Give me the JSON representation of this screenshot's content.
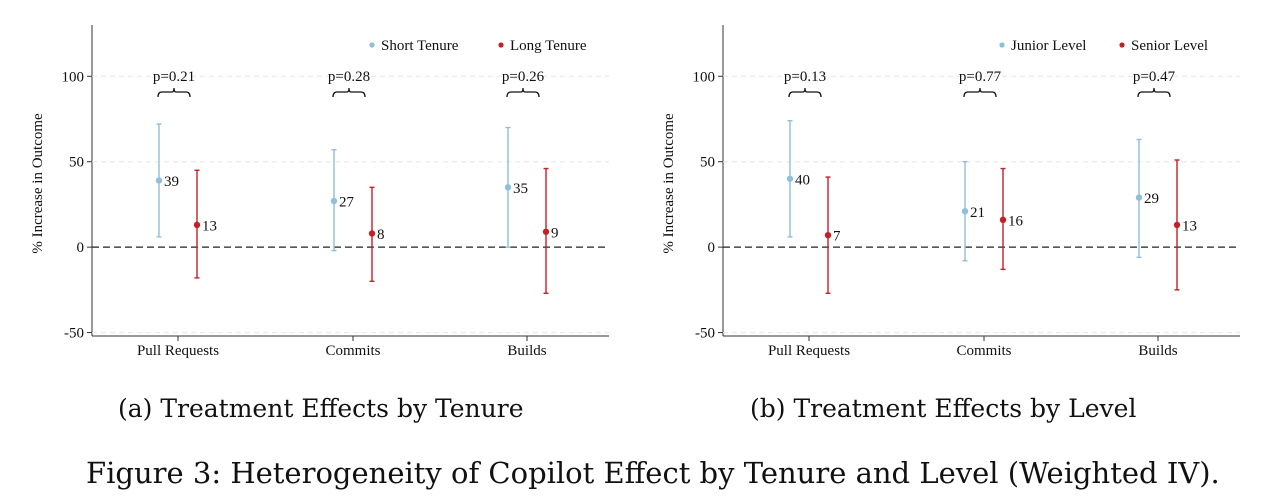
{
  "chart_data": [
    {
      "type": "scatter",
      "subtitle": "(a) Treatment Effects by Tenure",
      "ylabel": "% Increase in Outcome",
      "xlabel": "",
      "categories": [
        "Pull Requests",
        "Commits",
        "Builds"
      ],
      "ylim": [
        -52,
        130
      ],
      "yticks": [
        100,
        50,
        0,
        -50
      ],
      "grid": true,
      "reference_line": 0,
      "legend_position": "top-right",
      "series": [
        {
          "name": "Short Tenure",
          "color": "#8fbfdb",
          "values": [
            39,
            27,
            35
          ],
          "labels": [
            "39",
            "27",
            "35"
          ],
          "ci_lower": [
            6,
            -2,
            0
          ],
          "ci_upper": [
            72,
            57,
            70
          ]
        },
        {
          "name": "Long Tenure",
          "color": "#c42026",
          "values": [
            13,
            8,
            9
          ],
          "labels": [
            "13",
            "8",
            "9"
          ],
          "ci_lower": [
            -18,
            -20,
            -27
          ],
          "ci_upper": [
            45,
            35,
            46
          ]
        }
      ],
      "pvalues": [
        "p=0.21",
        "p=0.28",
        "p=0.26"
      ]
    },
    {
      "type": "scatter",
      "subtitle": "(b) Treatment Effects by Level",
      "ylabel": "% Increase in Outcome",
      "xlabel": "",
      "categories": [
        "Pull Requests",
        "Commits",
        "Builds"
      ],
      "ylim": [
        -52,
        130
      ],
      "yticks": [
        100,
        50,
        0,
        -50
      ],
      "grid": true,
      "reference_line": 0,
      "legend_position": "top-right",
      "series": [
        {
          "name": "Junior Level",
          "color": "#8fbfdb",
          "values": [
            40,
            21,
            29
          ],
          "labels": [
            "40",
            "21",
            "29"
          ],
          "ci_lower": [
            6,
            -8,
            -6
          ],
          "ci_upper": [
            74,
            50,
            63
          ]
        },
        {
          "name": "Senior Level",
          "color": "#c42026",
          "values": [
            7,
            16,
            13
          ],
          "labels": [
            "7",
            "16",
            "13"
          ],
          "ci_lower": [
            -27,
            -13,
            -25
          ],
          "ci_upper": [
            41,
            46,
            51
          ]
        }
      ],
      "pvalues": [
        "p=0.13",
        "p=0.77",
        "p=0.47"
      ]
    }
  ],
  "captions": {
    "a": "(a) Treatment Effects by Tenure",
    "b": "(b) Treatment Effects by Level",
    "figure": "Figure 3: Heterogeneity of Copilot Effect by Tenure and Level (Weighted IV)."
  }
}
